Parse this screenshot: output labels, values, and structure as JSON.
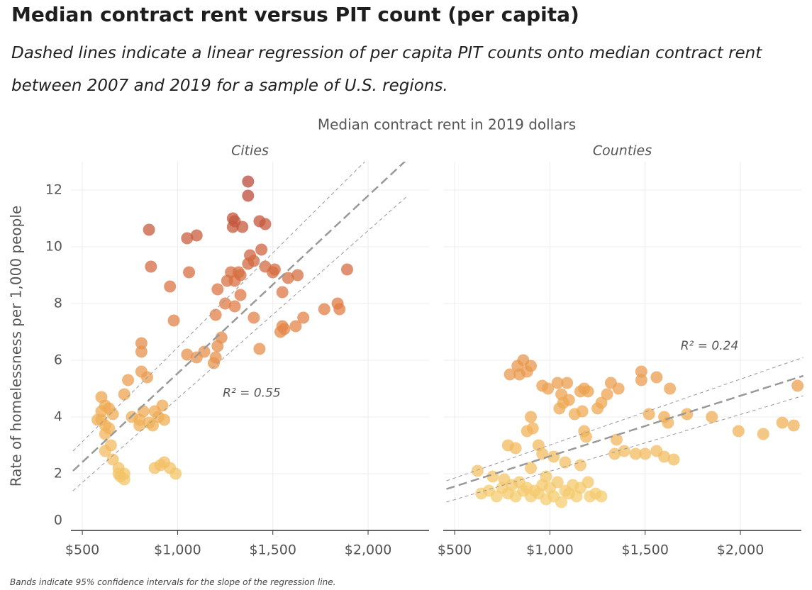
{
  "header": {
    "title": "Median contract rent versus PIT count (per capita)",
    "subtitle": "Dashed lines indicate a linear regression of per capita PIT counts onto median contract rent between 2007 and 2019 for a sample of U.S. regions."
  },
  "x_label": "Median contract rent in 2019 dollars",
  "y_label": "Rate of homelessness per 1,000 people",
  "note": "Bands indicate 95% confidence intervals for the slope of the regression line.",
  "color_scale": {
    "domain": [
      0,
      12
    ],
    "colors": [
      "#f6d97a",
      "#f0ae55",
      "#e07b45",
      "#b94a3a"
    ]
  },
  "chart_data": [
    {
      "type": "scatter",
      "title": "Cities",
      "xlim": [
        440,
        2320
      ],
      "ylim": [
        0,
        13
      ],
      "xticks": [
        {
          "value": 500,
          "label": "$500"
        },
        {
          "value": 1000,
          "label": "$1,000"
        },
        {
          "value": 1500,
          "label": "$1,500"
        },
        {
          "value": 2000,
          "label": "$2,000"
        }
      ],
      "yticks": [
        0,
        2,
        4,
        6,
        8,
        10,
        12
      ],
      "show_ytick_labels": true,
      "x": [
        1370,
        1370,
        1290,
        1290,
        1340,
        1300,
        1430,
        1460,
        850,
        1100,
        1050,
        1380,
        1440,
        1370,
        1400,
        860,
        1060,
        1280,
        1320,
        1260,
        1300,
        1330,
        1460,
        1500,
        1510,
        1890,
        960,
        1210,
        1330,
        1580,
        1630,
        1550,
        1250,
        1300,
        1200,
        1840,
        1770,
        1850,
        1660,
        1400,
        980,
        1550,
        1560,
        1620,
        1540,
        1230,
        810,
        1210,
        1430,
        1140,
        810,
        1050,
        1100,
        1190,
        1200,
        810,
        840,
        740,
        720,
        600,
        620,
        600,
        640,
        580,
        660,
        620,
        760,
        800,
        820,
        850,
        880,
        920,
        900,
        930,
        800,
        870,
        620,
        650,
        620,
        660,
        690,
        700,
        690,
        720,
        720,
        880,
        910,
        930,
        960,
        990,
        600,
        640
      ],
      "y": [
        12.3,
        11.8,
        11.0,
        10.7,
        10.7,
        10.9,
        10.9,
        10.8,
        10.6,
        10.4,
        10.3,
        9.7,
        9.9,
        9.4,
        9.5,
        9.3,
        9.1,
        9.1,
        9.1,
        8.8,
        8.8,
        9.0,
        9.3,
        9.1,
        9.2,
        9.2,
        8.6,
        8.5,
        8.3,
        8.9,
        9.0,
        8.4,
        8.0,
        7.9,
        7.6,
        8.0,
        7.8,
        7.8,
        7.5,
        7.5,
        7.4,
        7.2,
        7.1,
        7.2,
        7.0,
        6.8,
        6.6,
        6.5,
        6.4,
        6.3,
        6.3,
        6.2,
        6.1,
        5.9,
        6.1,
        5.6,
        5.4,
        5.3,
        4.8,
        4.7,
        4.4,
        4.2,
        4.3,
        3.9,
        4.1,
        3.7,
        4.0,
        3.9,
        4.2,
        3.8,
        4.2,
        4.4,
        4.0,
        3.9,
        3.7,
        3.7,
        3.4,
        3.0,
        2.8,
        2.5,
        2.2,
        1.9,
        2.0,
        1.8,
        2.0,
        2.2,
        2.3,
        2.4,
        2.2,
        2.0,
        3.9,
        3.6
      ],
      "fit": {
        "x": [
          451,
          2208
        ],
        "y": [
          2.1,
          13.1
        ],
        "ci_low": [
          1.4,
          11.8
        ],
        "ci_high": [
          2.8,
          14.5
        ]
      },
      "annotation": {
        "text": "R² = 0.55",
        "x": 1389,
        "y": 4.84
      }
    },
    {
      "type": "scatter",
      "title": "Counties",
      "xlim": [
        440,
        2320
      ],
      "ylim": [
        0,
        13
      ],
      "xticks": [
        {
          "value": 500,
          "label": "$500"
        },
        {
          "value": 1000,
          "label": "$1,000"
        },
        {
          "value": 1500,
          "label": "$1,500"
        },
        {
          "value": 2000,
          "label": "$2,000"
        }
      ],
      "yticks": [
        0,
        2,
        4,
        6,
        8,
        10,
        12
      ],
      "show_ytick_labels": false,
      "x": [
        860,
        830,
        900,
        790,
        840,
        880,
        960,
        990,
        1040,
        1090,
        1160,
        1200,
        1180,
        1060,
        1070,
        1050,
        1100,
        1130,
        1170,
        1250,
        1270,
        1300,
        1320,
        1360,
        1480,
        1480,
        1560,
        1630,
        1520,
        1600,
        1620,
        1720,
        1850,
        1990,
        2120,
        2220,
        2280,
        2300,
        900,
        910,
        880,
        1180,
        1190,
        1350,
        1340,
        1390,
        1450,
        1500,
        1560,
        1600,
        1650,
        780,
        820,
        940,
        960,
        1020,
        1080,
        1160,
        620,
        700,
        760,
        800,
        840,
        880,
        920,
        960,
        1000,
        1040,
        1080,
        1120,
        1160,
        1200,
        640,
        680,
        720,
        750,
        780,
        820,
        860,
        900,
        940,
        980,
        1020,
        1060,
        1100,
        1140,
        1240,
        1270,
        1210,
        980,
        900
      ],
      "y": [
        6.0,
        5.8,
        5.8,
        5.5,
        5.5,
        5.6,
        5.1,
        5.0,
        5.2,
        5.2,
        4.9,
        4.9,
        5.0,
        4.8,
        4.5,
        4.3,
        4.6,
        4.1,
        4.2,
        4.3,
        4.5,
        4.8,
        5.2,
        5.0,
        5.6,
        5.3,
        5.4,
        5.0,
        4.1,
        4.0,
        3.8,
        4.1,
        4.0,
        3.5,
        3.4,
        3.8,
        3.7,
        5.1,
        4.0,
        3.6,
        3.5,
        3.5,
        3.3,
        3.2,
        2.7,
        2.8,
        2.7,
        2.7,
        2.8,
        2.6,
        2.5,
        3.0,
        2.9,
        3.0,
        2.7,
        2.6,
        2.4,
        2.3,
        2.1,
        1.9,
        1.8,
        1.6,
        1.7,
        1.5,
        1.4,
        1.6,
        1.5,
        1.7,
        1.4,
        1.6,
        1.5,
        1.7,
        1.3,
        1.4,
        1.2,
        1.5,
        1.3,
        1.2,
        1.4,
        1.2,
        1.3,
        1.1,
        1.2,
        1.0,
        1.3,
        1.2,
        1.3,
        1.2,
        1.2,
        1.9,
        2.2
      ],
      "fit": {
        "x": [
          457,
          2330
        ],
        "y": [
          1.46,
          5.45
        ],
        "ci_low": [
          1.0,
          4.75
        ],
        "ci_high": [
          1.75,
          6.1
        ]
      },
      "annotation": {
        "text": "R² = 0.24",
        "x": 1838,
        "y": 6.5
      }
    }
  ]
}
